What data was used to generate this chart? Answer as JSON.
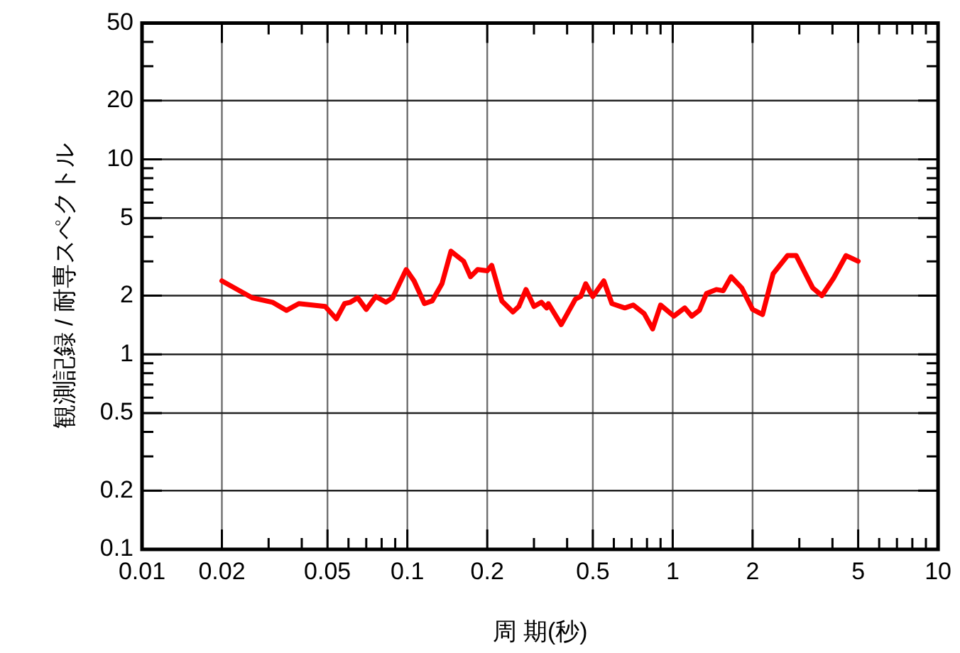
{
  "chart_data": {
    "type": "line",
    "xlabel": "周 期(秒)",
    "ylabel": "観測記録 / 耐専スペクトル",
    "log": "xy",
    "grid": true,
    "legend": false,
    "marker": "none",
    "line_style": "solid",
    "xlim": [
      0.01,
      10
    ],
    "ylim": [
      0.1,
      50
    ],
    "xticks": [
      0.01,
      0.02,
      {
        "value": 0.03,
        "label": null
      },
      {
        "value": 0.04,
        "label": null
      },
      0.05,
      {
        "value": 0.06,
        "label": null
      },
      {
        "value": 0.07,
        "label": null
      },
      {
        "value": 0.08,
        "label": null
      },
      {
        "value": 0.09,
        "label": null
      },
      0.1,
      0.2,
      {
        "value": 0.3,
        "label": null
      },
      {
        "value": 0.4,
        "label": null
      },
      0.5,
      {
        "value": 0.6,
        "label": null
      },
      {
        "value": 0.7,
        "label": null
      },
      {
        "value": 0.8,
        "label": null
      },
      {
        "value": 0.9,
        "label": null
      },
      1,
      2,
      {
        "value": 3,
        "label": null
      },
      {
        "value": 4,
        "label": null
      },
      5,
      {
        "value": 6,
        "label": null
      },
      {
        "value": 7,
        "label": null
      },
      {
        "value": 8,
        "label": null
      },
      {
        "value": 9,
        "label": null
      },
      10
    ],
    "yticks": [
      0.1,
      0.2,
      {
        "value": 0.3,
        "label": null
      },
      {
        "value": 0.4,
        "label": null
      },
      0.5,
      {
        "value": 0.6,
        "label": null
      },
      {
        "value": 0.7,
        "label": null
      },
      {
        "value": 0.8,
        "label": null
      },
      {
        "value": 0.9,
        "label": null
      },
      1,
      2,
      {
        "value": 3,
        "label": null
      },
      {
        "value": 4,
        "label": null
      },
      5,
      {
        "value": 6,
        "label": null
      },
      {
        "value": 7,
        "label": null
      },
      {
        "value": 8,
        "label": null
      },
      {
        "value": 9,
        "label": null
      },
      10,
      20,
      {
        "value": 30,
        "label": null
      },
      {
        "value": 40,
        "label": null
      },
      50
    ],
    "series": [
      {
        "color": "#ff0000",
        "x": [
          0.02,
          0.026,
          0.031,
          0.035,
          0.039,
          0.049,
          0.054,
          0.058,
          0.061,
          0.065,
          0.07,
          0.076,
          0.083,
          0.088,
          0.099,
          0.106,
          0.116,
          0.124,
          0.135,
          0.146,
          0.163,
          0.173,
          0.184,
          0.2,
          0.208,
          0.227,
          0.25,
          0.263,
          0.28,
          0.3,
          0.32,
          0.335,
          0.34,
          0.38,
          0.43,
          0.45,
          0.47,
          0.5,
          0.55,
          0.59,
          0.66,
          0.71,
          0.78,
          0.84,
          0.9,
          1.01,
          1.11,
          1.18,
          1.26,
          1.34,
          1.46,
          1.55,
          1.66,
          1.82,
          2.0,
          2.18,
          2.39,
          2.71,
          2.92,
          3.37,
          3.65,
          4.04,
          4.5,
          5.0
        ],
        "values": [
          2.38,
          1.95,
          1.85,
          1.68,
          1.82,
          1.76,
          1.52,
          1.82,
          1.85,
          1.95,
          1.7,
          1.98,
          1.85,
          1.95,
          2.72,
          2.38,
          1.82,
          1.88,
          2.3,
          3.38,
          3.0,
          2.5,
          2.72,
          2.68,
          2.86,
          1.88,
          1.65,
          1.76,
          2.15,
          1.76,
          1.85,
          1.73,
          1.82,
          1.42,
          1.92,
          1.98,
          2.3,
          1.98,
          2.38,
          1.82,
          1.73,
          1.79,
          1.62,
          1.35,
          1.79,
          1.57,
          1.73,
          1.57,
          1.68,
          2.05,
          2.15,
          2.12,
          2.5,
          2.19,
          1.7,
          1.6,
          2.59,
          3.21,
          3.21,
          2.19,
          2.0,
          2.46,
          3.21,
          3.0
        ]
      }
    ]
  }
}
